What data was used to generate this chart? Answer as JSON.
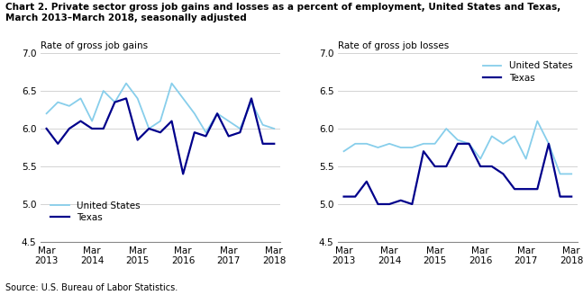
{
  "title_line1": "Chart 2. Private sector gross job gains and losses as a percent of employment, United States and Texas,",
  "title_line2": "March 2013–March 2018, seasonally adjusted",
  "source": "Source: U.S. Bureau of Labor Statistics.",
  "left_ylabel": "Rate of gross job gains",
  "right_ylabel": "Rate of gross job losses",
  "x_labels": [
    "Mar\n2013",
    "Mar\n2014",
    "Mar\n2015",
    "Mar\n2016",
    "Mar\n2017",
    "Mar\n2018"
  ],
  "x_positions": [
    0,
    4,
    8,
    12,
    16,
    20
  ],
  "ylim": [
    4.5,
    7.0
  ],
  "yticks": [
    4.5,
    5.0,
    5.5,
    6.0,
    6.5,
    7.0
  ],
  "color_us": "#87CEEB",
  "color_tx": "#00008B",
  "gains_us": [
    6.2,
    6.35,
    6.3,
    6.4,
    6.1,
    6.5,
    6.35,
    6.6,
    6.4,
    6.0,
    6.1,
    6.6,
    6.4,
    6.2,
    5.95,
    6.2,
    6.1,
    6.0,
    6.35,
    6.05,
    6.0
  ],
  "gains_tx": [
    6.0,
    5.8,
    6.0,
    6.1,
    6.0,
    6.0,
    6.35,
    6.4,
    5.85,
    6.0,
    5.95,
    6.1,
    5.4,
    5.95,
    5.9,
    6.2,
    5.9,
    5.95,
    6.4,
    5.8,
    5.8
  ],
  "losses_us": [
    5.7,
    5.8,
    5.8,
    5.75,
    5.8,
    5.75,
    5.75,
    5.8,
    5.8,
    6.0,
    5.85,
    5.8,
    5.6,
    5.9,
    5.8,
    5.9,
    5.6,
    6.1,
    5.8,
    5.4,
    5.4
  ],
  "losses_tx": [
    5.1,
    5.1,
    5.3,
    5.0,
    5.0,
    5.05,
    5.0,
    5.7,
    5.5,
    5.5,
    5.8,
    5.8,
    5.5,
    5.5,
    5.4,
    5.2,
    5.2,
    5.2,
    5.8,
    5.1,
    5.1
  ]
}
